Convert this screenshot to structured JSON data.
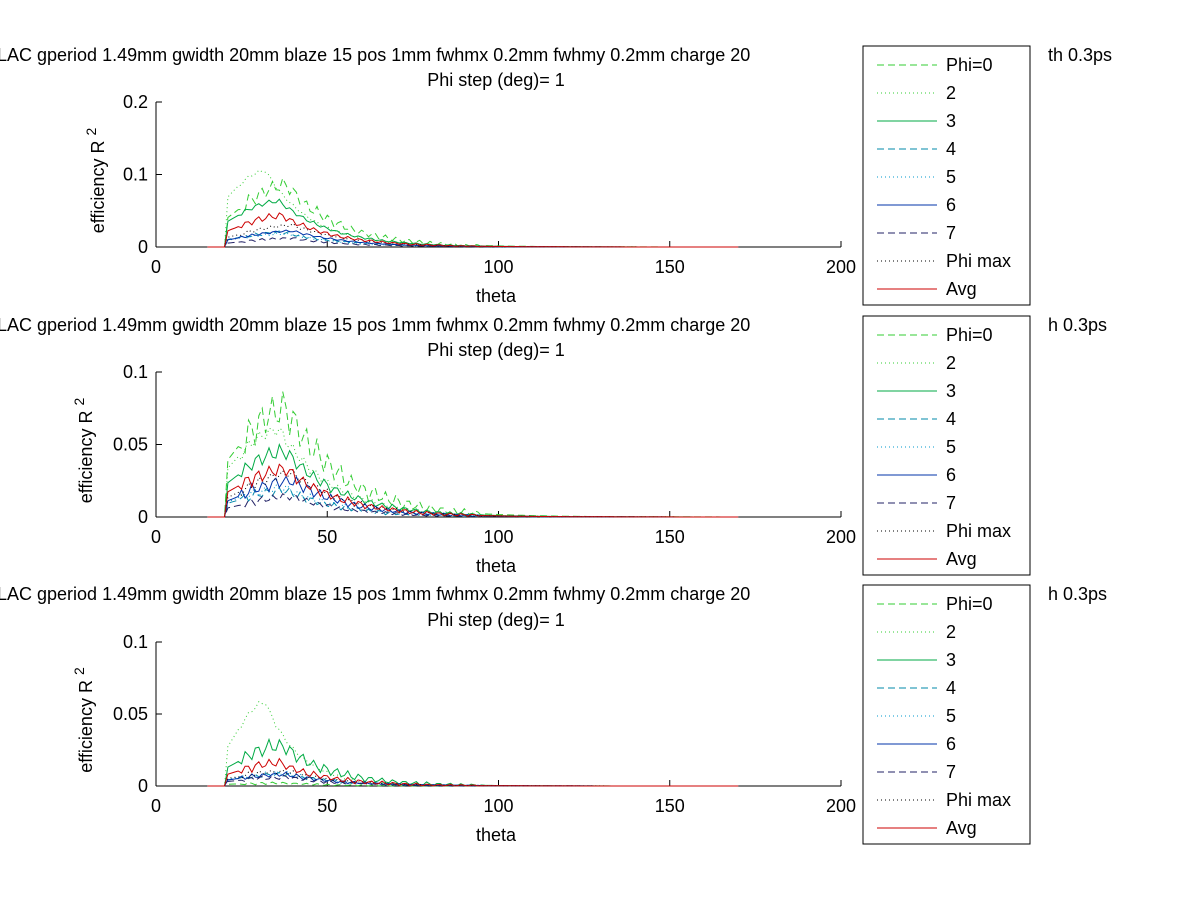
{
  "colors": {
    "phi0": "#33cc33",
    "phi2": "#33cc33",
    "phi3": "#00aa44",
    "phi4": "#0088aa",
    "phi5": "#0099cc",
    "phi6": "#0033aa",
    "phi7": "#222266",
    "phimax": "#000000",
    "avg": "#cc0000"
  },
  "chart_data": [
    {
      "type": "line",
      "title": "LAC gperiod 1.49mm gwidth 20mm blaze 15 pos 1mm fwhmx 0.2mm fwhmy 0.2mm charge 20",
      "title_tail": "th 0.3ps",
      "subtitle": "Phi step (deg)= 1",
      "xlabel": "theta",
      "ylabel": "efficiency R",
      "ylabel_sup": "2",
      "xlim": [
        0,
        200
      ],
      "ylim": [
        0,
        0.2
      ],
      "xticks": [
        "0",
        "50",
        "100",
        "150",
        "200"
      ],
      "yticks": [
        "0",
        "0.1",
        "0.2"
      ],
      "yticks_values": [
        0,
        0.1,
        0.2
      ],
      "legend": [
        "Phi=0",
        "2",
        "3",
        "4",
        "5",
        "6",
        "7",
        "Phi max",
        "Avg"
      ],
      "legend_position": "right",
      "theta_range": [
        15,
        170
      ],
      "series": [
        {
          "name": "Phi=0",
          "style": "dashed",
          "color_key": "phi0",
          "peak_x": 38,
          "peak_y": 0.085,
          "noise": 0.012,
          "width": 14
        },
        {
          "name": "2",
          "style": "dotted",
          "color_key": "phi2",
          "peak_x": 32,
          "peak_y": 0.105,
          "noise": 0.003,
          "width": 12
        },
        {
          "name": "3",
          "style": "solid",
          "color_key": "phi3",
          "peak_x": 36,
          "peak_y": 0.063,
          "noise": 0.004,
          "width": 14
        },
        {
          "name": "4",
          "style": "dashed",
          "color_key": "phi4",
          "peak_x": 38,
          "peak_y": 0.02,
          "noise": 0.003,
          "width": 15
        },
        {
          "name": "5",
          "style": "dotted",
          "color_key": "phi5",
          "peak_x": 38,
          "peak_y": 0.018,
          "noise": 0.002,
          "width": 15
        },
        {
          "name": "6",
          "style": "solid",
          "color_key": "phi6",
          "peak_x": 40,
          "peak_y": 0.022,
          "noise": 0.002,
          "width": 15
        },
        {
          "name": "7",
          "style": "dashed",
          "color_key": "phi7",
          "peak_x": 40,
          "peak_y": 0.012,
          "noise": 0.002,
          "width": 15
        },
        {
          "name": "Phi max",
          "style": "dotted",
          "color_key": "phimax",
          "peak_x": 40,
          "peak_y": 0.03,
          "noise": 0.003,
          "width": 15
        },
        {
          "name": "Avg",
          "style": "solid",
          "color_key": "avg",
          "peak_x": 37,
          "peak_y": 0.043,
          "noise": 0.005,
          "width": 14
        }
      ]
    },
    {
      "type": "line",
      "title": "LAC gperiod 1.49mm gwidth 20mm blaze 15 pos 1mm fwhmx 0.2mm fwhmy 0.2mm charge 20",
      "title_tail": "h 0.3ps",
      "subtitle": "Phi step (deg)= 1",
      "xlabel": "theta",
      "ylabel": "efficiency R",
      "ylabel_sup": "2",
      "xlim": [
        0,
        200
      ],
      "ylim": [
        0,
        0.1
      ],
      "xticks": [
        "0",
        "50",
        "100",
        "150",
        "200"
      ],
      "yticks": [
        "0",
        "0.05",
        "0.1"
      ],
      "yticks_values": [
        0,
        0.05,
        0.1
      ],
      "legend": [
        "Phi=0",
        "2",
        "3",
        "4",
        "5",
        "6",
        "7",
        "Phi max",
        "Avg"
      ],
      "legend_position": "right",
      "theta_range": [
        15,
        170
      ],
      "series": [
        {
          "name": "Phi=0",
          "style": "dashed",
          "color_key": "phi0",
          "peak_x": 38,
          "peak_y": 0.075,
          "noise": 0.015,
          "width": 15
        },
        {
          "name": "2",
          "style": "dotted",
          "color_key": "phi2",
          "peak_x": 36,
          "peak_y": 0.06,
          "noise": 0.005,
          "width": 14
        },
        {
          "name": "3",
          "style": "solid",
          "color_key": "phi3",
          "peak_x": 38,
          "peak_y": 0.045,
          "noise": 0.006,
          "width": 15
        },
        {
          "name": "4",
          "style": "dashed",
          "color_key": "phi4",
          "peak_x": 38,
          "peak_y": 0.018,
          "noise": 0.004,
          "width": 15
        },
        {
          "name": "5",
          "style": "dotted",
          "color_key": "phi5",
          "peak_x": 38,
          "peak_y": 0.02,
          "noise": 0.004,
          "width": 15
        },
        {
          "name": "6",
          "style": "solid",
          "color_key": "phi6",
          "peak_x": 40,
          "peak_y": 0.025,
          "noise": 0.005,
          "width": 15
        },
        {
          "name": "7",
          "style": "dashed",
          "color_key": "phi7",
          "peak_x": 40,
          "peak_y": 0.014,
          "noise": 0.003,
          "width": 15
        },
        {
          "name": "Phi max",
          "style": "dotted",
          "color_key": "phimax",
          "peak_x": 40,
          "peak_y": 0.03,
          "noise": 0.004,
          "width": 15
        },
        {
          "name": "Avg",
          "style": "solid",
          "color_key": "avg",
          "peak_x": 38,
          "peak_y": 0.033,
          "noise": 0.006,
          "width": 15
        }
      ]
    },
    {
      "type": "line",
      "title": "LAC gperiod 1.49mm gwidth 20mm blaze 15 pos 1mm fwhmx 0.2mm fwhmy 0.2mm charge 20",
      "title_tail": "h 0.3ps",
      "subtitle": "Phi step (deg)= 1",
      "xlabel": "theta",
      "ylabel": "efficiency R",
      "ylabel_sup": "2",
      "xlim": [
        0,
        200
      ],
      "ylim": [
        0,
        0.1
      ],
      "xticks": [
        "0",
        "50",
        "100",
        "150",
        "200"
      ],
      "yticks": [
        "0",
        "0.05",
        "0.1"
      ],
      "yticks_values": [
        0,
        0.05,
        0.1
      ],
      "legend": [
        "Phi=0",
        "2",
        "3",
        "4",
        "5",
        "6",
        "7",
        "Phi max",
        "Avg"
      ],
      "legend_position": "right",
      "theta_range": [
        15,
        170
      ],
      "series": [
        {
          "name": "Phi=0",
          "style": "dashed",
          "color_key": "phi0",
          "peak_x": 36,
          "peak_y": 0.002,
          "noise": 0.001,
          "width": 15
        },
        {
          "name": "2",
          "style": "dotted",
          "color_key": "phi2",
          "peak_x": 32,
          "peak_y": 0.058,
          "noise": 0.002,
          "width": 9
        },
        {
          "name": "3",
          "style": "solid",
          "color_key": "phi3",
          "peak_x": 37,
          "peak_y": 0.028,
          "noise": 0.006,
          "width": 13
        },
        {
          "name": "4",
          "style": "dashed",
          "color_key": "phi4",
          "peak_x": 38,
          "peak_y": 0.008,
          "noise": 0.002,
          "width": 15
        },
        {
          "name": "5",
          "style": "dotted",
          "color_key": "phi5",
          "peak_x": 38,
          "peak_y": 0.009,
          "noise": 0.002,
          "width": 15
        },
        {
          "name": "6",
          "style": "solid",
          "color_key": "phi6",
          "peak_x": 38,
          "peak_y": 0.008,
          "noise": 0.002,
          "width": 15
        },
        {
          "name": "7",
          "style": "dashed",
          "color_key": "phi7",
          "peak_x": 38,
          "peak_y": 0.006,
          "noise": 0.002,
          "width": 15
        },
        {
          "name": "Phi max",
          "style": "dotted",
          "color_key": "phimax",
          "peak_x": 38,
          "peak_y": 0.01,
          "noise": 0.002,
          "width": 15
        },
        {
          "name": "Avg",
          "style": "solid",
          "color_key": "avg",
          "peak_x": 36,
          "peak_y": 0.016,
          "noise": 0.004,
          "width": 13
        }
      ]
    }
  ]
}
